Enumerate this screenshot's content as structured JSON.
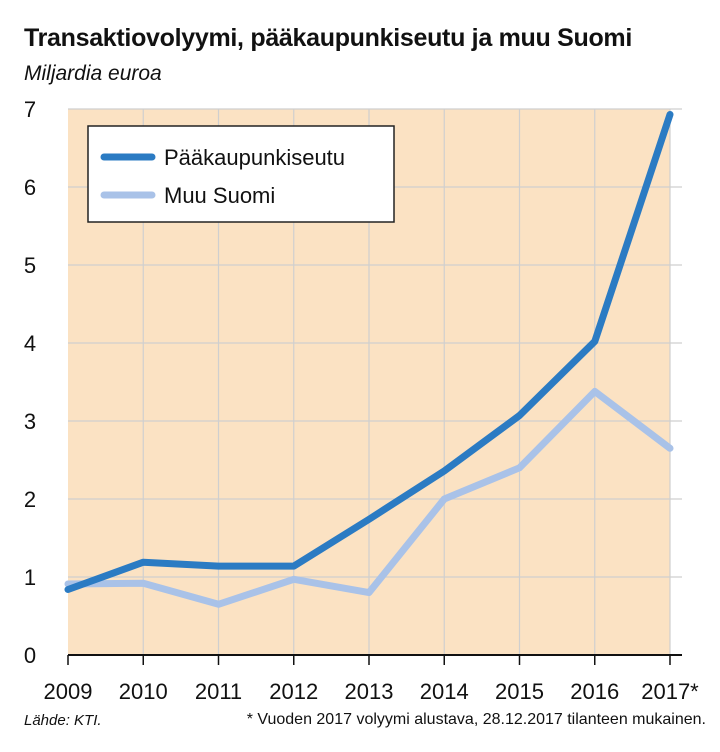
{
  "title": "Transaktiovolyymi, pääkaupunkiseutu ja muu Suomi",
  "subtitle": "Miljardia euroa",
  "source": "Lähde: KTI.",
  "footnote": "* Vuoden 2017 volyymi alustava, 28.12.2017 tilanteen mukainen.",
  "chart_data": {
    "type": "line",
    "title": "Transaktiovolyymi, pääkaupunkiseutu ja muu Suomi",
    "ylabel": "Miljardia euroa",
    "xlabel": "",
    "categories": [
      "2009",
      "2010",
      "2011",
      "2012",
      "2013",
      "2014",
      "2015",
      "2016",
      "2017*"
    ],
    "ylim": [
      0,
      7
    ],
    "yticks": [
      0,
      1,
      2,
      3,
      4,
      5,
      6,
      7
    ],
    "grid": true,
    "legend_position": "top-left",
    "background_color": "#fbe2c3",
    "series": [
      {
        "name": "Pääkaupunkiseutu",
        "color": "#2b7bc3",
        "values": [
          0.84,
          1.19,
          1.14,
          1.14,
          1.74,
          2.36,
          3.07,
          4.02,
          6.93
        ]
      },
      {
        "name": "Muu Suomi",
        "color": "#a9c2e8",
        "values": [
          0.91,
          0.92,
          0.65,
          0.97,
          0.8,
          2.0,
          2.4,
          3.38,
          2.65
        ]
      }
    ]
  }
}
